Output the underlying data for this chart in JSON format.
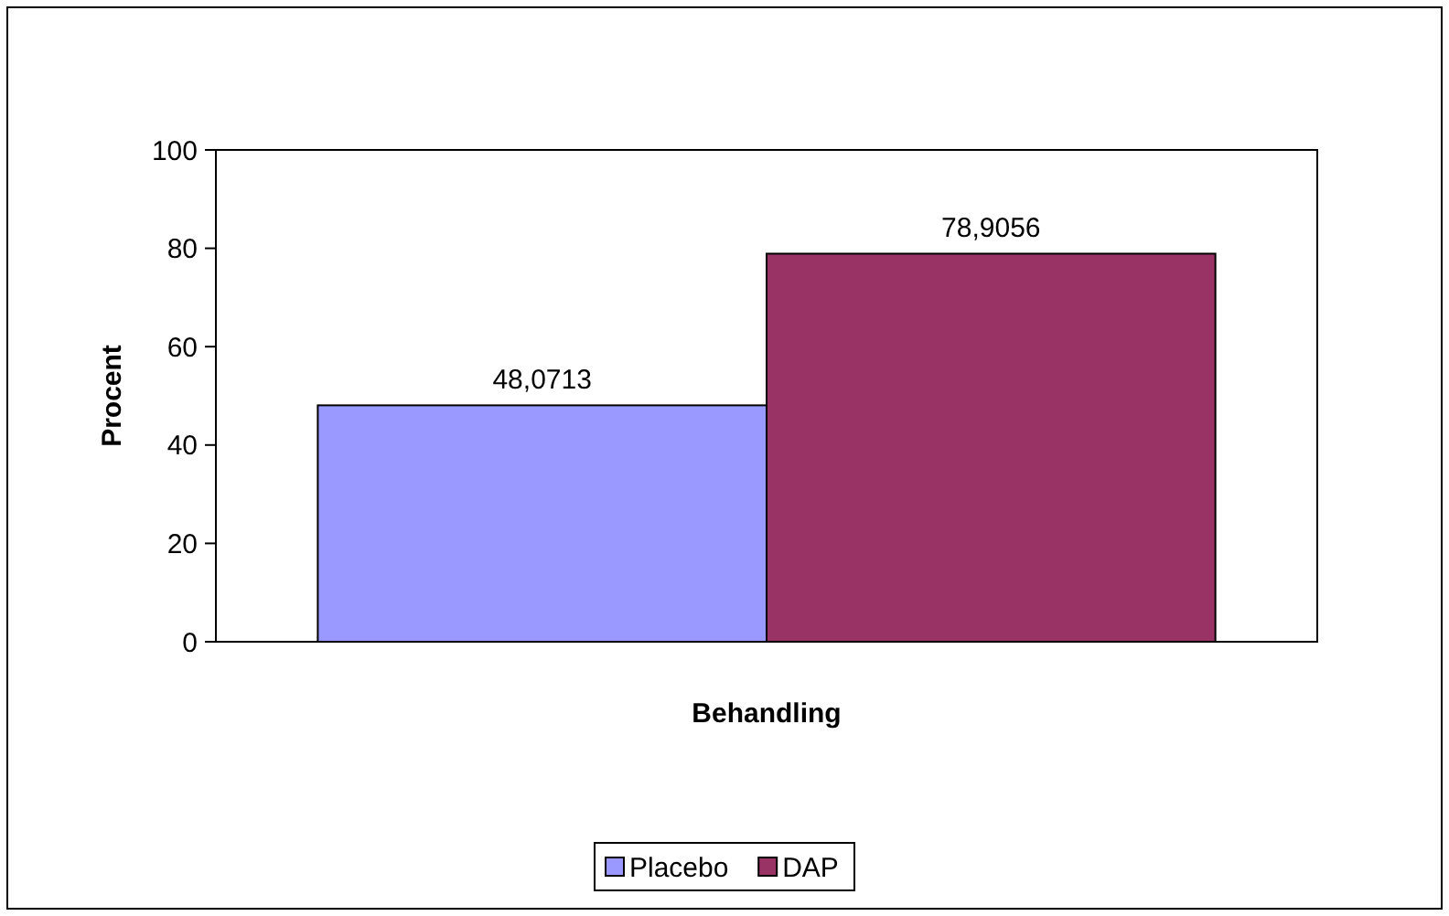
{
  "chart_data": {
    "type": "bar",
    "ylabel": "Procent",
    "xlabel": "Behandling",
    "categories": [
      null
    ],
    "series": [
      {
        "name": "Placebo",
        "color": "#9999ff",
        "values": [
          48.0713
        ],
        "value_labels": [
          "48,0713"
        ]
      },
      {
        "name": "DAP",
        "color": "#993366",
        "values": [
          78.9056
        ],
        "value_labels": [
          "78,9056"
        ]
      }
    ],
    "ylim": [
      0,
      100
    ],
    "yticks": [
      0,
      20,
      40,
      60,
      80,
      100
    ],
    "grid": false,
    "legend": "bottom"
  }
}
